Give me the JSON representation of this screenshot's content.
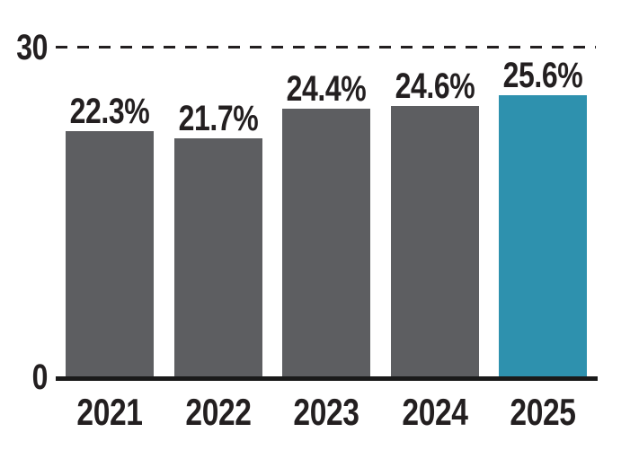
{
  "chart_data": {
    "type": "bar",
    "categories": [
      "2021",
      "2022",
      "2023",
      "2024",
      "2025"
    ],
    "values": [
      22.3,
      21.7,
      24.4,
      24.6,
      25.6
    ],
    "value_labels": [
      "22.3%",
      "21.7%",
      "24.4%",
      "24.6%",
      "25.6%"
    ],
    "title": "",
    "xlabel": "",
    "ylabel": "",
    "ylim": [
      0,
      30
    ],
    "y_ticks": [
      0,
      30
    ],
    "y_tick_labels": [
      "0",
      "30"
    ],
    "gridline": "dashed horizontal line at y=30",
    "legend": "none",
    "highlight_index": 4,
    "colors": {
      "bar": "#5D5E61",
      "highlight": "#2E91AE",
      "text": "#231F20",
      "axis": "#1A1A1A",
      "background": "#FFFFFF"
    }
  }
}
